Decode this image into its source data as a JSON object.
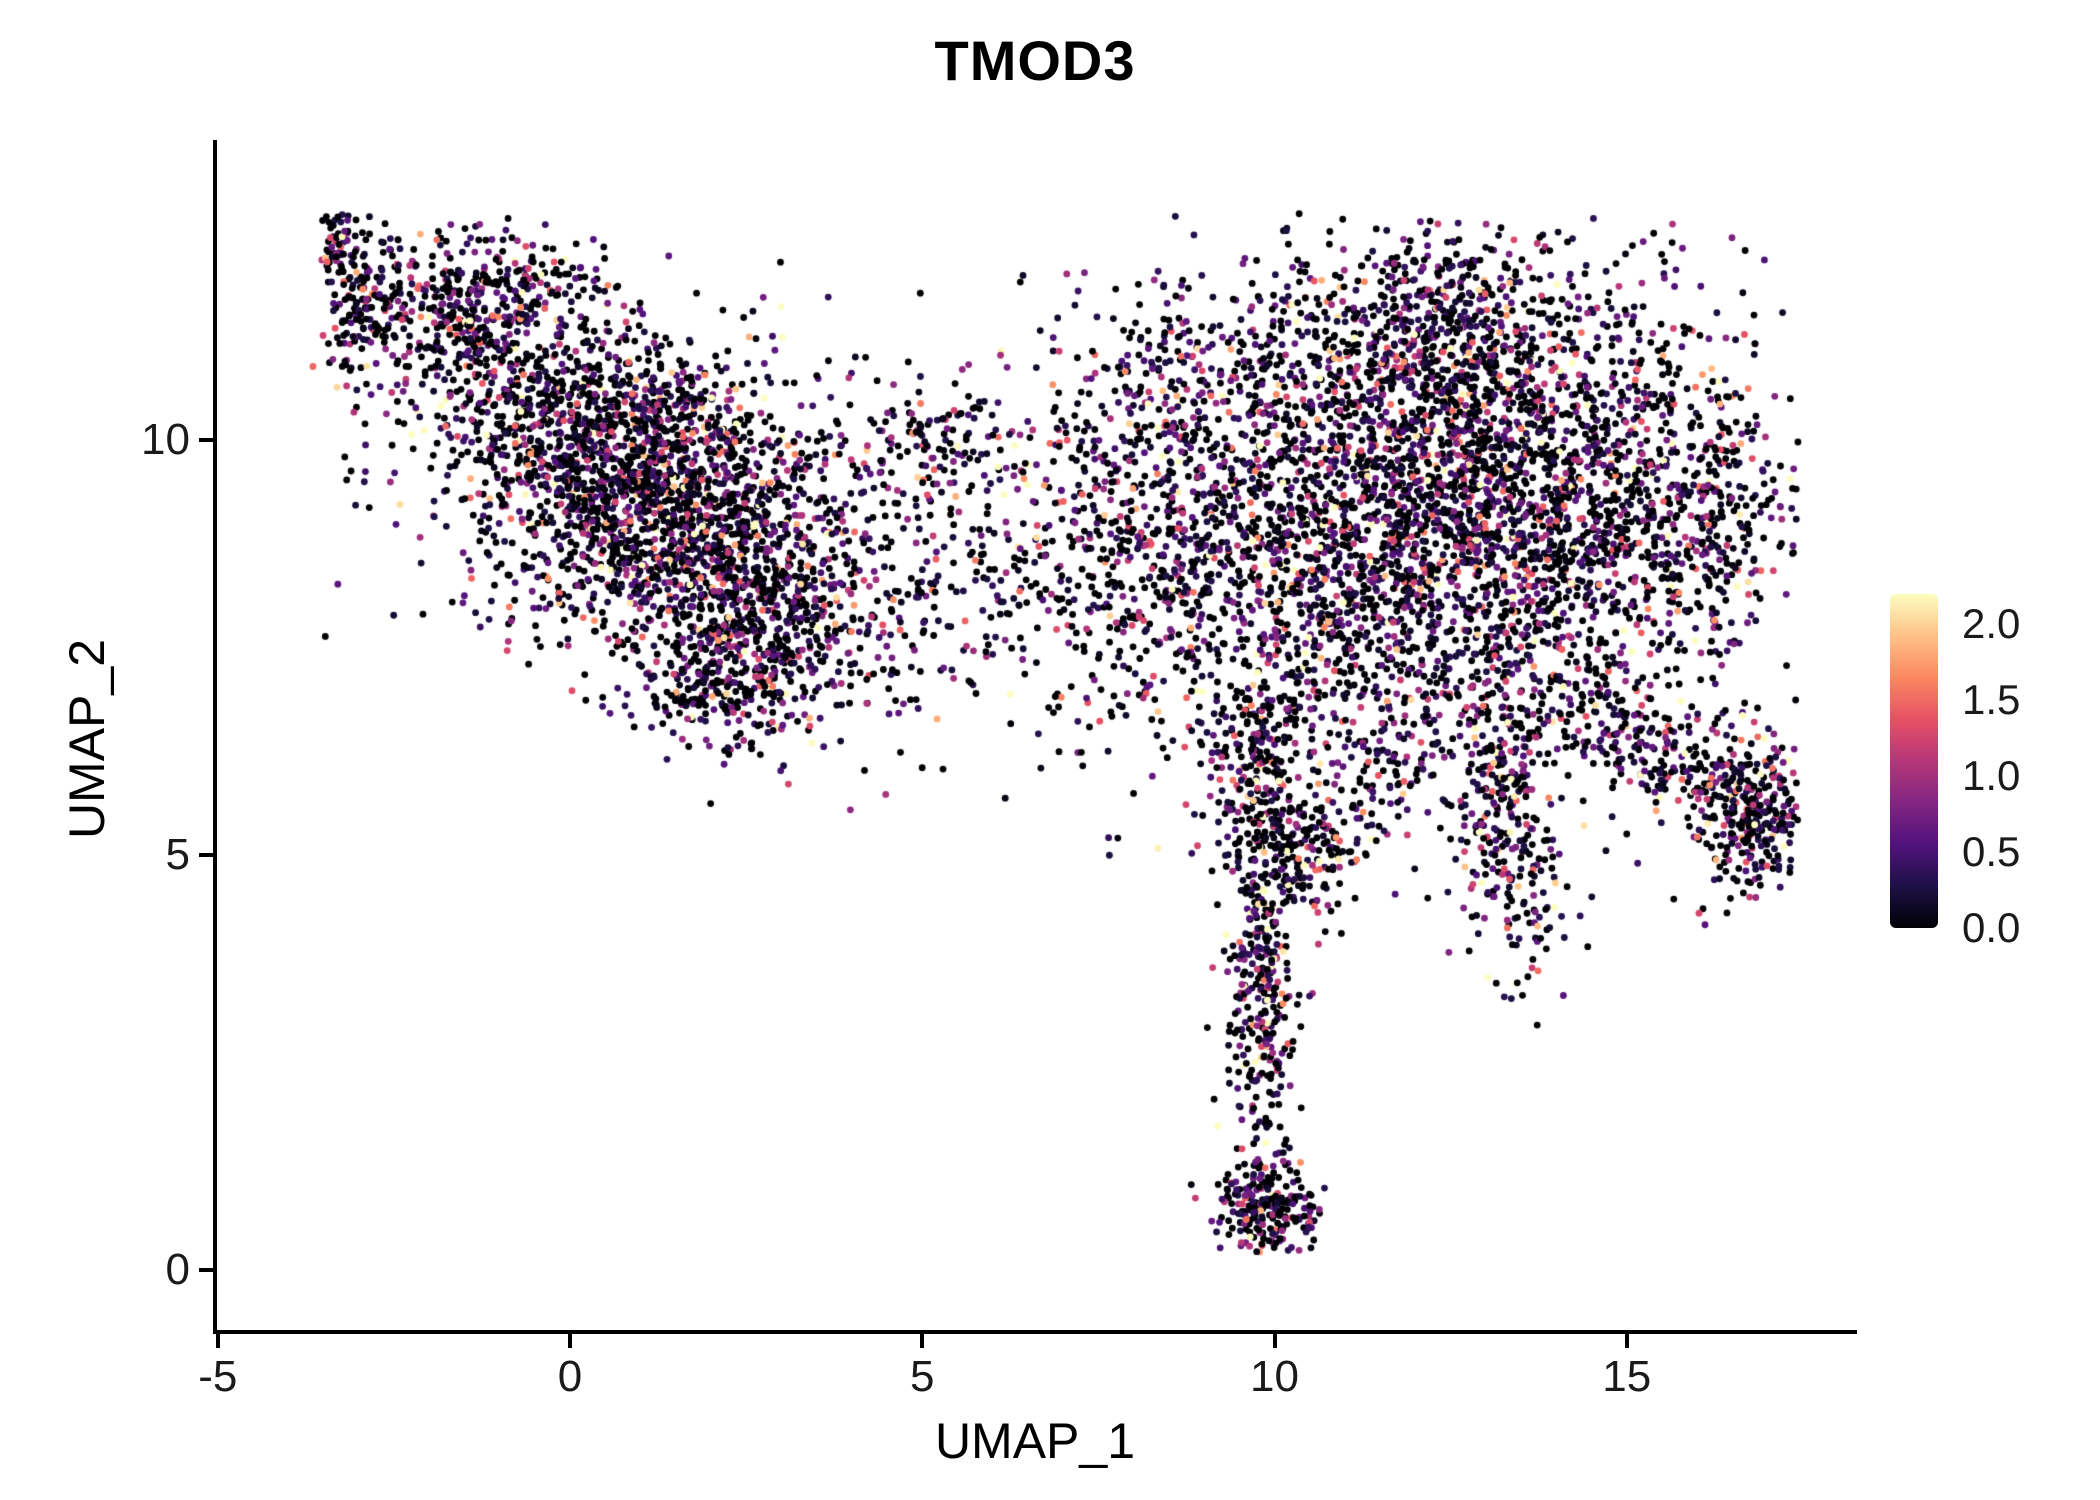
{
  "chart_data": {
    "type": "scatter",
    "title": "TMOD3",
    "xlabel": "UMAP_1",
    "ylabel": "UMAP_2",
    "xlim": [
      -5.04,
      18.24
    ],
    "ylim": [
      -0.72,
      13.61
    ],
    "xticks": [
      -5,
      0,
      5,
      10,
      15
    ],
    "yticks": [
      0,
      5,
      10
    ],
    "grid": false,
    "legend": {
      "position": "right",
      "ticks": [
        "2.0",
        "1.5",
        "1.0",
        "0.5",
        "0.0"
      ],
      "tick_values": [
        2.0,
        1.5,
        1.0,
        0.5,
        0.0
      ],
      "min": 0.0,
      "max": 2.2,
      "colormap": "magma",
      "colormap_stops": [
        "#000004",
        "#1d1147",
        "#51127c",
        "#822681",
        "#b63679",
        "#e65164",
        "#fb8861",
        "#fec287",
        "#fcfdbf"
      ]
    },
    "points": {
      "seed": 1337,
      "radius_px": 3.4,
      "zero_fraction": 0.38,
      "exp_mean": 0.65,
      "clip": {
        "xmin": -3.65,
        "xmax": 17.45,
        "ymin": 0.2,
        "ymax": 12.75
      },
      "clusters": [
        {
          "name": "left-tail-tip",
          "cx": -3.3,
          "cy": 12.4,
          "sx": 0.12,
          "sy": 0.28,
          "rot": -20,
          "n": 60
        },
        {
          "name": "left-tail",
          "cx": -2.95,
          "cy": 11.55,
          "sx": 0.22,
          "sy": 0.5,
          "rot": -15,
          "n": 130
        },
        {
          "name": "left-top",
          "cx": -1.7,
          "cy": 11.55,
          "sx": 0.65,
          "sy": 0.42,
          "rot": -8,
          "n": 280
        },
        {
          "name": "left-top-ext",
          "cx": -0.55,
          "cy": 11.85,
          "sx": 0.55,
          "sy": 0.28,
          "rot": 0,
          "n": 110
        },
        {
          "name": "left-upper",
          "cx": 0.1,
          "cy": 10.3,
          "sx": 1.25,
          "sy": 0.65,
          "rot": -14,
          "n": 650
        },
        {
          "name": "left-core",
          "cx": 1.3,
          "cy": 9.2,
          "sx": 1.55,
          "sy": 0.95,
          "rot": -10,
          "n": 1650
        },
        {
          "name": "left-lower",
          "cx": 2.7,
          "cy": 7.9,
          "sx": 1.05,
          "sy": 0.65,
          "rot": -18,
          "n": 560
        },
        {
          "name": "left-lobe",
          "cx": 2.2,
          "cy": 7.0,
          "sx": 0.7,
          "sy": 0.32,
          "rot": 0,
          "n": 190
        },
        {
          "name": "mid-sparse",
          "cx": 5.8,
          "cy": 8.7,
          "sx": 1.15,
          "sy": 1.05,
          "rot": 0,
          "n": 260
        },
        {
          "name": "mid-top",
          "cx": 5.0,
          "cy": 10.0,
          "sx": 0.65,
          "sy": 0.32,
          "rot": 0,
          "n": 90
        },
        {
          "name": "mid-right",
          "cx": 8.3,
          "cy": 8.6,
          "sx": 1.0,
          "sy": 1.15,
          "rot": 0,
          "n": 680
        },
        {
          "name": "mid-upper-arc",
          "cx": 8.9,
          "cy": 10.9,
          "sx": 0.7,
          "sy": 0.5,
          "rot": 20,
          "n": 130
        },
        {
          "name": "right-core",
          "cx": 12.8,
          "cy": 9.3,
          "sx": 1.9,
          "sy": 1.45,
          "rot": 0,
          "n": 3200
        },
        {
          "name": "right-top",
          "cx": 12.2,
          "cy": 11.4,
          "sx": 1.25,
          "sy": 0.55,
          "rot": 0,
          "n": 430
        },
        {
          "name": "right-left-edge",
          "cx": 10.6,
          "cy": 8.0,
          "sx": 0.75,
          "sy": 1.15,
          "rot": 0,
          "n": 380
        },
        {
          "name": "right-right-edge",
          "cx": 16.1,
          "cy": 9.0,
          "sx": 0.75,
          "sy": 0.75,
          "rot": 0,
          "n": 260
        },
        {
          "name": "right-arm",
          "cx": 15.4,
          "cy": 6.3,
          "sx": 1.15,
          "sy": 0.33,
          "rot": -28,
          "n": 270
        },
        {
          "name": "far-right",
          "cx": 16.75,
          "cy": 5.5,
          "sx": 0.42,
          "sy": 0.55,
          "rot": -15,
          "n": 280
        },
        {
          "name": "lower-lobe",
          "cx": 13.3,
          "cy": 5.4,
          "sx": 0.38,
          "sy": 0.95,
          "rot": 8,
          "n": 290
        },
        {
          "name": "lobe-bridge",
          "cx": 11.9,
          "cy": 6.1,
          "sx": 0.85,
          "sy": 0.45,
          "rot": 0,
          "n": 120
        },
        {
          "name": "tail-neck",
          "cx": 9.8,
          "cy": 6.1,
          "sx": 0.38,
          "sy": 0.5,
          "rot": 0,
          "n": 150
        },
        {
          "name": "tail-knot",
          "cx": 10.3,
          "cy": 5.0,
          "sx": 0.5,
          "sy": 0.38,
          "rot": 0,
          "n": 200
        },
        {
          "name": "tail",
          "cx": 9.8,
          "cy": 3.4,
          "sx": 0.27,
          "sy": 1.15,
          "rot": 0,
          "n": 340
        },
        {
          "name": "tail-bottom",
          "cx": 9.9,
          "cy": 0.75,
          "sx": 0.38,
          "sy": 0.3,
          "rot": 0,
          "n": 220
        }
      ]
    }
  }
}
